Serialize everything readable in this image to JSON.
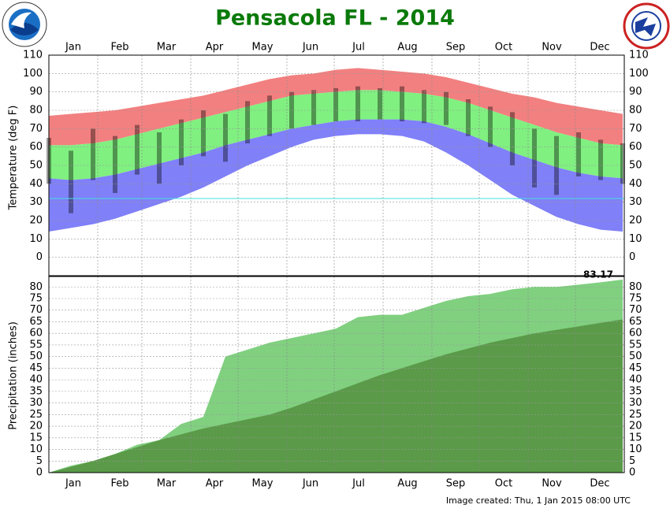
{
  "chart_data": [
    {
      "type": "temperature-band",
      "title": "Pensacola FL - 2014",
      "y_label": "Temperature (deg F)",
      "categories": [
        "Jan",
        "Feb",
        "Mar",
        "Apr",
        "May",
        "Jun",
        "Jul",
        "Aug",
        "Sep",
        "Oct",
        "Nov",
        "Dec"
      ],
      "xlim": [
        0,
        365
      ],
      "x": [
        0,
        14,
        28,
        42,
        56,
        70,
        84,
        98,
        112,
        126,
        140,
        154,
        168,
        182,
        196,
        210,
        224,
        238,
        252,
        266,
        280,
        294,
        308,
        322,
        336,
        350,
        364
      ],
      "record_high": [
        77,
        78,
        79,
        80,
        82,
        84,
        86,
        88,
        91,
        94,
        97,
        99,
        100,
        102,
        103,
        102,
        101,
        100,
        98,
        95,
        92,
        89,
        87,
        84,
        82,
        80,
        78
      ],
      "normal_high": [
        61,
        61,
        62,
        64,
        67,
        70,
        73,
        76,
        79,
        82,
        85,
        88,
        89,
        90,
        91,
        91,
        90,
        89,
        87,
        84,
        80,
        76,
        72,
        68,
        65,
        62,
        61
      ],
      "normal_low": [
        43,
        42,
        43,
        45,
        48,
        51,
        54,
        57,
        61,
        64,
        67,
        70,
        72,
        74,
        75,
        75,
        75,
        74,
        71,
        67,
        62,
        57,
        53,
        49,
        46,
        44,
        43
      ],
      "record_low": [
        14,
        16,
        18,
        21,
        25,
        29,
        33,
        38,
        44,
        50,
        55,
        60,
        64,
        66,
        67,
        67,
        66,
        63,
        57,
        50,
        42,
        34,
        28,
        22,
        18,
        15,
        14
      ],
      "actual_high": [
        65,
        58,
        70,
        66,
        72,
        68,
        75,
        80,
        78,
        85,
        88,
        90,
        91,
        92,
        93,
        92,
        93,
        91,
        90,
        86,
        82,
        79,
        70,
        66,
        68,
        64,
        62
      ],
      "actual_low": [
        40,
        24,
        42,
        35,
        45,
        40,
        50,
        55,
        52,
        62,
        66,
        70,
        72,
        74,
        74,
        75,
        74,
        73,
        72,
        66,
        60,
        50,
        38,
        34,
        44,
        42,
        40
      ],
      "colors": {
        "record_high": "#f28080",
        "normal": "#80f080",
        "record_low": "#8080f8",
        "actual": "rgba(0,0,0,0.38)",
        "reference": "#40e0e0"
      },
      "reference_line": 32,
      "ylim": [
        -10,
        110
      ],
      "yticks": [
        0,
        10,
        20,
        30,
        40,
        50,
        60,
        70,
        80,
        90,
        100,
        110
      ],
      "grid": true
    },
    {
      "type": "cumulative-area",
      "y_label": "Precipitation (inches)",
      "categories": [
        "Jan",
        "Feb",
        "Mar",
        "Apr",
        "May",
        "Jun",
        "Jul",
        "Aug",
        "Sep",
        "Oct",
        "Nov",
        "Dec"
      ],
      "xlim": [
        0,
        365
      ],
      "x": [
        0,
        14,
        28,
        42,
        56,
        70,
        84,
        98,
        112,
        126,
        140,
        154,
        168,
        182,
        196,
        210,
        224,
        238,
        252,
        266,
        280,
        294,
        308,
        322,
        336,
        350,
        364
      ],
      "observed": [
        0,
        3,
        5,
        8,
        12,
        14,
        21,
        24,
        50,
        53,
        56,
        58,
        60,
        62,
        67,
        68,
        68,
        71,
        74,
        76,
        77,
        79,
        80,
        80,
        81,
        82,
        83.17
      ],
      "normal": [
        0,
        2.5,
        5,
        8,
        11,
        14,
        16.5,
        19,
        21,
        23,
        25,
        28,
        31.5,
        35,
        38.5,
        42,
        45,
        48,
        51,
        53.5,
        56,
        58,
        60,
        61.5,
        63,
        64.5,
        66
      ],
      "colors": {
        "observed": "#80d080",
        "normal": "#5a9a48"
      },
      "total_label": "83.17",
      "ylim": [
        0,
        84.5
      ],
      "yticks": [
        0,
        5,
        10,
        15,
        20,
        25,
        30,
        35,
        40,
        45,
        50,
        55,
        60,
        65,
        70,
        75,
        80
      ],
      "grid": true
    }
  ],
  "footer": "Image created: Thu, 1 Jan 2015 08:00 UTC"
}
